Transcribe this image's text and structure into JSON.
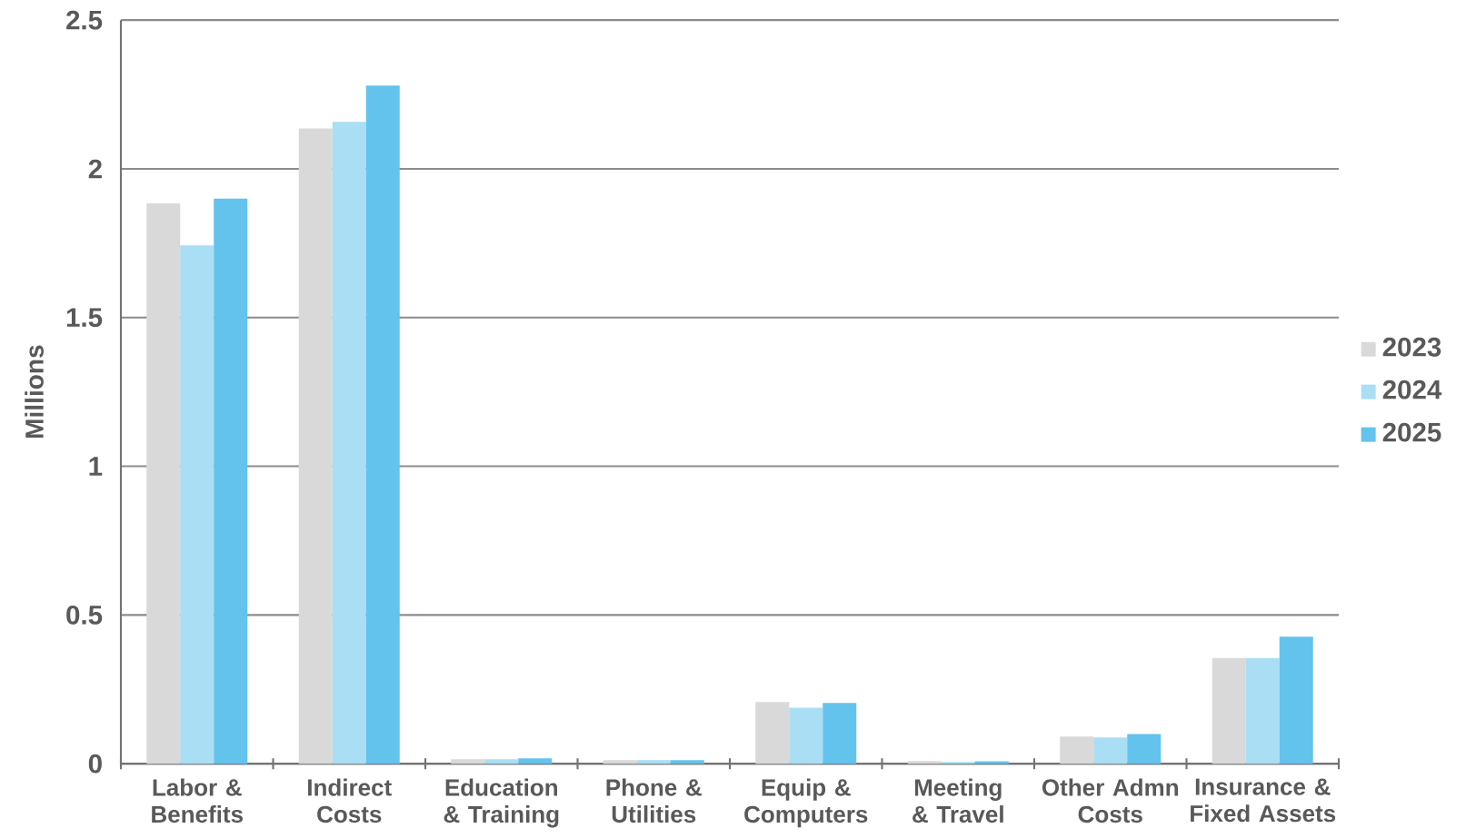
{
  "chart_data": {
    "type": "bar",
    "ylabel": "Millions",
    "categories": [
      "Labor & Benefits",
      "Indirect Costs",
      "Education & Training",
      "Phone & Utilities",
      "Equip & Computers",
      "Meeting & Travel",
      "Other Admn Costs",
      "Insurance & Fixed Assets"
    ],
    "series": [
      {
        "name": "2023",
        "color": "#d9d9d9",
        "values": [
          1.884,
          2.136,
          0.015,
          0.012,
          0.207,
          0.009,
          0.091,
          0.355
        ]
      },
      {
        "name": "2024",
        "color": "#a9def5",
        "values": [
          1.743,
          2.158,
          0.015,
          0.012,
          0.188,
          0.006,
          0.088,
          0.355
        ]
      },
      {
        "name": "2025",
        "color": "#63c3ec",
        "values": [
          1.9,
          2.28,
          0.018,
          0.012,
          0.204,
          0.008,
          0.1,
          0.427
        ]
      }
    ],
    "ylim": [
      0,
      2.5
    ],
    "yticks": [
      0,
      0.5,
      1,
      1.5,
      2,
      2.5
    ],
    "grid": "y",
    "legend": "right"
  }
}
